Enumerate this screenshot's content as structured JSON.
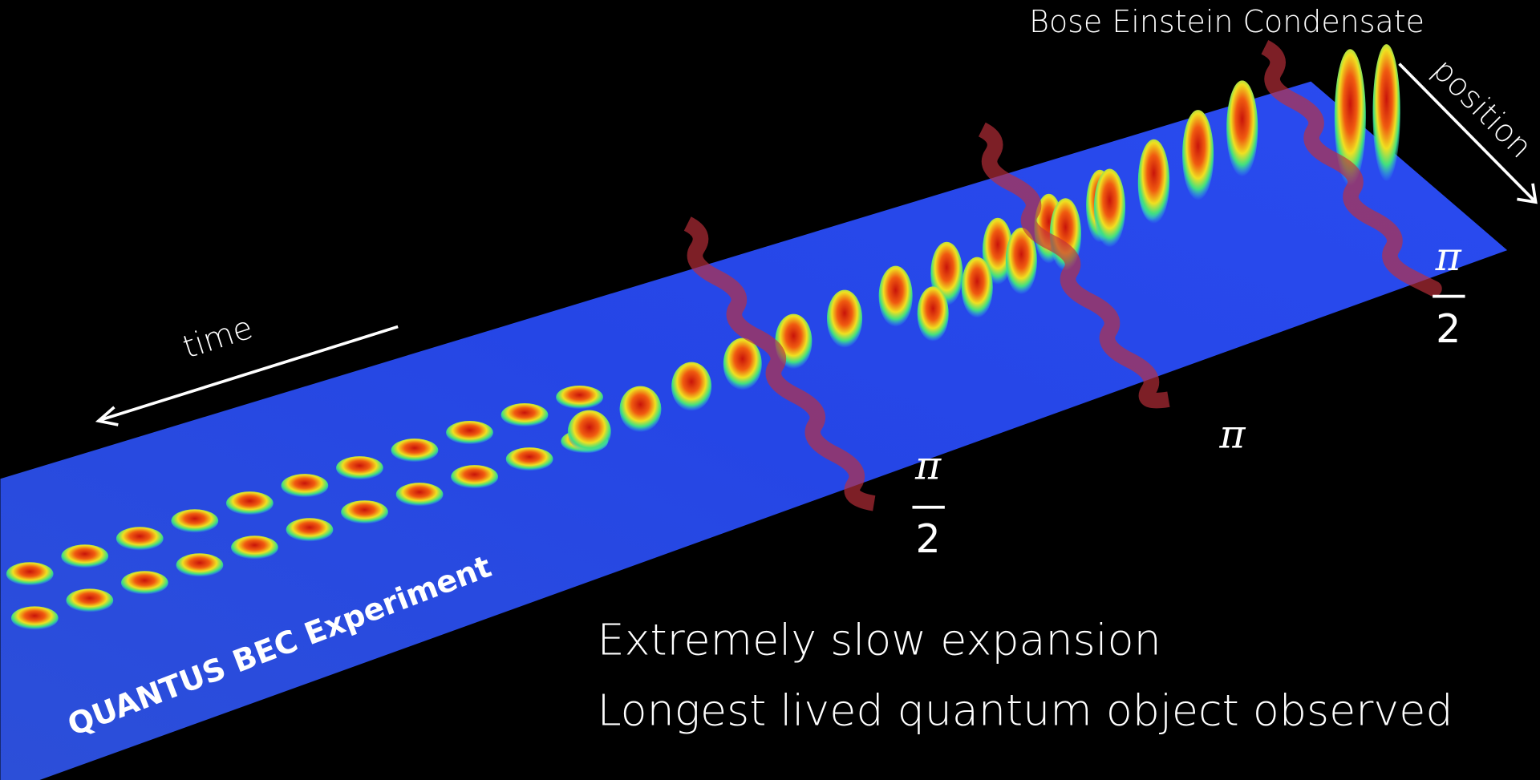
{
  "annotations": {
    "condensate": "Bose Einstein Condensate",
    "position": "position",
    "time": "time",
    "experiment": "QUANTUS BEC Experiment"
  },
  "pulses": [
    {
      "numerator": "π",
      "denominator": "2"
    },
    {
      "label": "π"
    },
    {
      "numerator": "π",
      "denominator": "2"
    }
  ],
  "bullets": [
    "Extremely slow expansion",
    "Longest lived quantum object observed"
  ]
}
